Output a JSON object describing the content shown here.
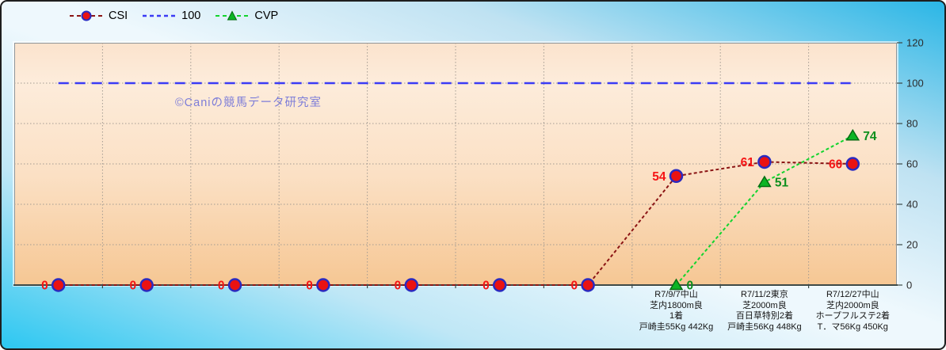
{
  "watermark": "©Caniの競馬データ研究室",
  "colors": {
    "frame_border": "#1e1e1e",
    "background_corner_bottom_left": "#2cc7f1",
    "background_center": "#eef8fd",
    "background_corner_top_right": "#2ab6e6",
    "plot_fill_top": "#fbe3cd",
    "plot_fill_bottom": "#f6c794",
    "gridline": "#a39b92",
    "axis_line": "#3d4a48",
    "tick_label": "#2b2b2b",
    "x_label": "#141414",
    "watermark": "#7d7dd8",
    "legend_text": "#000000"
  },
  "chart_data": {
    "type": "line",
    "title": "",
    "ylim": [
      0,
      120
    ],
    "yticks": [
      0,
      20,
      40,
      60,
      80,
      100,
      120
    ],
    "grid": true,
    "legend_position": "top-left",
    "categories": [
      [],
      [],
      [],
      [],
      [],
      [],
      [],
      [
        "R7/9/7中山",
        "芝内1800m良",
        "1着",
        "戸崎圭55Kg 442Kg"
      ],
      [
        "R7/11/2東京",
        "芝2000m良",
        "百日草特別2着",
        "戸崎圭56Kg 448Kg"
      ],
      [
        "R7/12/27中山",
        "芝内2000m良",
        "ホープフルステ2着",
        "T．マ56Kg 450Kg"
      ]
    ],
    "series": [
      {
        "name": "CSI",
        "values": [
          0,
          0,
          0,
          0,
          0,
          0,
          0,
          54,
          61,
          60
        ],
        "line_color": "#8b1414",
        "line_width": 2,
        "line_dash": "4 3",
        "marker": "circle",
        "marker_fill": "#ea1212",
        "marker_stroke": "#2a2ac0",
        "show_labels": true,
        "label_color": "#f51515",
        "label_side": "left"
      },
      {
        "name": "100",
        "values": [
          100,
          100,
          100,
          100,
          100,
          100,
          100,
          100,
          100,
          100
        ],
        "line_color": "#3b3bf5",
        "line_width": 2.5,
        "line_dash": "13 8",
        "marker": "none",
        "show_labels": false
      },
      {
        "name": "CVP",
        "values": [
          null,
          null,
          null,
          null,
          null,
          null,
          null,
          0,
          51,
          74
        ],
        "line_color": "#12d42e",
        "line_width": 2,
        "line_dash": "4 3",
        "marker": "triangle",
        "marker_fill": "#0cb525",
        "marker_stroke": "#076d12",
        "show_labels": true,
        "label_color": "#0c8f1d",
        "label_side": "right"
      }
    ]
  }
}
